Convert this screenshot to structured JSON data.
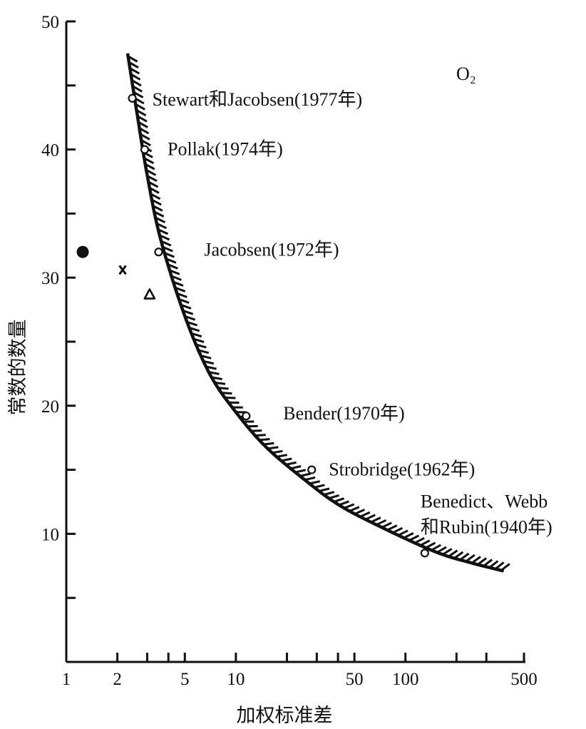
{
  "chart_data": {
    "type": "scatter",
    "title": "",
    "xlabel": "加权标准差",
    "ylabel": "常数的数量",
    "x_scale": "log",
    "xlim": [
      1,
      500
    ],
    "ylim": [
      0,
      50
    ],
    "x_tick_labels": [
      {
        "value": 1,
        "label": "1"
      },
      {
        "value": 2,
        "label": "2"
      },
      {
        "value": 5,
        "label": "5"
      },
      {
        "value": 10,
        "label": "10"
      },
      {
        "value": 50,
        "label": "50"
      },
      {
        "value": 100,
        "label": "100"
      },
      {
        "value": 500,
        "label": "500"
      }
    ],
    "x_minor_ticks": [
      3,
      4,
      20,
      30,
      40,
      200,
      300
    ],
    "y_tick_labels": [
      {
        "value": 10,
        "label": "10"
      },
      {
        "value": 20,
        "label": "20"
      },
      {
        "value": 30,
        "label": "30"
      },
      {
        "value": 40,
        "label": "40"
      },
      {
        "value": 50,
        "label": "50"
      }
    ],
    "y_minor_ticks": [
      5,
      15,
      25,
      35,
      45
    ],
    "grid": false,
    "legend": "none",
    "corner_label": "O₂",
    "frontier_curve": [
      {
        "x": 2.3,
        "y": 47.5
      },
      {
        "x": 2.6,
        "y": 43
      },
      {
        "x": 3.0,
        "y": 38
      },
      {
        "x": 3.6,
        "y": 33
      },
      {
        "x": 5.0,
        "y": 27
      },
      {
        "x": 7.0,
        "y": 22.5
      },
      {
        "x": 10,
        "y": 19.5
      },
      {
        "x": 15,
        "y": 16.8
      },
      {
        "x": 25,
        "y": 14.3
      },
      {
        "x": 40,
        "y": 12.3
      },
      {
        "x": 70,
        "y": 10.6
      },
      {
        "x": 150,
        "y": 8.6
      },
      {
        "x": 250,
        "y": 7.7
      },
      {
        "x": 380,
        "y": 7.1
      }
    ],
    "labeled_points": [
      {
        "x": 2.45,
        "y": 44,
        "label_lines": [
          "Stewart和Jacobsen(1977年)"
        ]
      },
      {
        "x": 2.9,
        "y": 40,
        "label_lines": [
          "Pollak(1974年)"
        ]
      },
      {
        "x": 3.5,
        "y": 32,
        "label_lines": [
          "Jacobsen(1972年)"
        ]
      },
      {
        "x": 11.5,
        "y": 19.2,
        "label_lines": [
          "Bender(1970年)"
        ]
      },
      {
        "x": 28,
        "y": 15,
        "label_lines": [
          "Strobridge(1962年)"
        ]
      },
      {
        "x": 130,
        "y": 8.5,
        "label_lines": [
          "Benedict、Webb",
          "和Rubin(1940年)"
        ]
      }
    ],
    "other_points": [
      {
        "x": 1.25,
        "y": 32,
        "marker": "filled-circle"
      },
      {
        "x": 2.15,
        "y": 30.6,
        "marker": "cross"
      },
      {
        "x": 3.1,
        "y": 28.7,
        "marker": "triangle"
      }
    ]
  }
}
